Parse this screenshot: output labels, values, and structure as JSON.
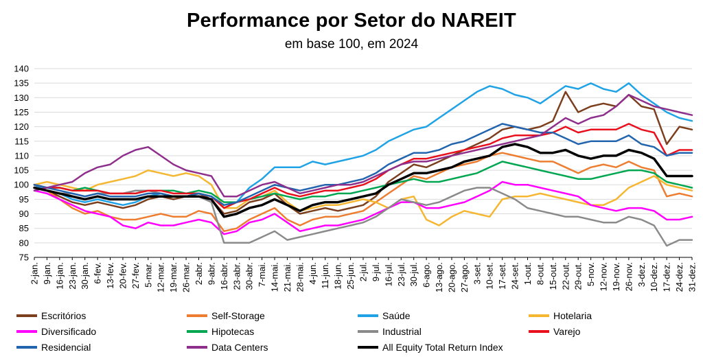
{
  "chart_data": {
    "type": "line",
    "title": "Performance por Setor do NAREIT",
    "subtitle": "em base 100, em 2024",
    "ylim": [
      75,
      140
    ],
    "yticks": [
      75,
      80,
      85,
      90,
      95,
      100,
      105,
      110,
      115,
      120,
      125,
      130,
      135,
      140
    ],
    "grid": "horizontal",
    "legend_position": "bottom",
    "x": [
      "2-jan.",
      "9-jan.",
      "16-jan.",
      "23-jan.",
      "30-jan.",
      "6-fev.",
      "13-fev.",
      "20-fev.",
      "27-fev.",
      "5-mar.",
      "12-mar.",
      "19-mar.",
      "26-mar.",
      "2-abr.",
      "9-abr.",
      "16-abr.",
      "23-abr.",
      "30-abr.",
      "7-mai.",
      "14-mai.",
      "21-mai.",
      "28-mai.",
      "4-jun.",
      "11-jun.",
      "18-jun.",
      "25-jun.",
      "2-jul.",
      "9-jul.",
      "16-jul.",
      "23-jul.",
      "30-jul.",
      "6-ago.",
      "13-ago.",
      "20-ago.",
      "27-ago.",
      "3-set.",
      "10-set.",
      "17-set.",
      "24-set.",
      "1-out.",
      "8-out.",
      "15-out.",
      "22-out.",
      "29-out.",
      "5-nov.",
      "12-nov.",
      "19-nov.",
      "26-nov.",
      "3-dez.",
      "10-dez.",
      "17-dez.",
      "24-dez.",
      "31-dez."
    ],
    "series": [
      {
        "name": "Escritórios",
        "color": "#7B3F1E",
        "width": 2.5,
        "values": [
          100,
          98,
          96,
          94,
          93,
          94,
          93,
          92,
          93,
          95,
          96,
          95,
          96,
          97,
          95,
          90,
          91,
          94,
          95,
          97,
          93,
          90,
          91,
          92,
          91,
          92,
          93,
          96,
          101,
          104,
          107,
          106,
          108,
          110,
          112,
          114,
          116,
          119,
          120,
          119,
          120,
          122,
          132,
          125,
          127,
          128,
          127,
          131,
          127,
          126,
          114,
          120,
          119
        ]
      },
      {
        "name": "Self-Storage",
        "color": "#ED7D31",
        "width": 2.5,
        "values": [
          100,
          98,
          95,
          92,
          90,
          91,
          89,
          88,
          88,
          89,
          90,
          89,
          89,
          91,
          90,
          84,
          85,
          88,
          90,
          92,
          88,
          86,
          88,
          89,
          89,
          90,
          91,
          94,
          97,
          100,
          103,
          102,
          104,
          106,
          107,
          108,
          110,
          111,
          110,
          109,
          108,
          108,
          106,
          104,
          106,
          107,
          106,
          108,
          106,
          105,
          96,
          97,
          96
        ]
      },
      {
        "name": "Saúde",
        "color": "#1FA3E6",
        "width": 2.5,
        "values": [
          100,
          98,
          97,
          95,
          94,
          95,
          94,
          93,
          94,
          96,
          97,
          96,
          96,
          97,
          96,
          92,
          94,
          99,
          102,
          106,
          106,
          106,
          108,
          107,
          108,
          109,
          110,
          112,
          115,
          117,
          119,
          120,
          123,
          126,
          129,
          132,
          134,
          133,
          131,
          130,
          128,
          131,
          134,
          133,
          135,
          133,
          132,
          135,
          131,
          128,
          125,
          123,
          122
        ]
      },
      {
        "name": "Hotelaria",
        "color": "#F5B731",
        "width": 2.5,
        "values": [
          100,
          101,
          100,
          99,
          98,
          100,
          101,
          102,
          103,
          105,
          104,
          103,
          104,
          103,
          100,
          92,
          92,
          95,
          96,
          98,
          94,
          91,
          92,
          93,
          93,
          94,
          95,
          94,
          92,
          95,
          96,
          88,
          86,
          89,
          91,
          90,
          89,
          95,
          96,
          96,
          97,
          96,
          95,
          94,
          93,
          93,
          95,
          99,
          101,
          103,
          100,
          99,
          98
        ]
      },
      {
        "name": "Diversificado",
        "color": "#FF00FF",
        "width": 2.5,
        "values": [
          98,
          97,
          95,
          93,
          91,
          90,
          89,
          86,
          85,
          87,
          86,
          86,
          87,
          88,
          87,
          83,
          84,
          87,
          88,
          90,
          87,
          84,
          85,
          86,
          86,
          87,
          88,
          90,
          92,
          94,
          94,
          92,
          92,
          93,
          94,
          96,
          98,
          101,
          100,
          100,
          99,
          98,
          97,
          96,
          93,
          92,
          91,
          92,
          92,
          91,
          88,
          88,
          89
        ]
      },
      {
        "name": "Hipotecas",
        "color": "#00A650",
        "width": 2.5,
        "values": [
          100,
          99,
          99,
          98,
          99,
          98,
          97,
          97,
          97,
          98,
          98,
          98,
          97,
          98,
          97,
          94,
          94,
          95,
          96,
          97,
          96,
          95,
          96,
          96,
          97,
          97,
          98,
          99,
          100,
          101,
          102,
          101,
          101,
          102,
          103,
          104,
          106,
          108,
          107,
          106,
          105,
          104,
          103,
          102,
          102,
          103,
          104,
          105,
          105,
          104,
          101,
          100,
          99
        ]
      },
      {
        "name": "Industrial",
        "color": "#8A8A8A",
        "width": 2.5,
        "values": [
          99,
          98,
          97,
          97,
          96,
          97,
          97,
          97,
          98,
          98,
          97,
          96,
          96,
          96,
          94,
          80,
          80,
          80,
          82,
          84,
          81,
          82,
          83,
          84,
          85,
          86,
          87,
          89,
          92,
          95,
          94,
          93,
          94,
          96,
          98,
          99,
          99,
          97,
          95,
          92,
          91,
          90,
          89,
          89,
          88,
          87,
          87,
          89,
          88,
          86,
          79,
          81,
          81
        ]
      },
      {
        "name": "Varejo",
        "color": "#E8101C",
        "width": 2.5,
        "values": [
          100,
          99,
          99,
          98,
          98,
          98,
          97,
          97,
          97,
          98,
          98,
          97,
          97,
          97,
          96,
          92,
          94,
          95,
          97,
          99,
          97,
          96,
          97,
          98,
          98,
          99,
          100,
          102,
          105,
          107,
          109,
          109,
          110,
          111,
          112,
          113,
          114,
          116,
          117,
          117,
          117,
          118,
          120,
          118,
          119,
          119,
          119,
          121,
          119,
          118,
          110,
          112,
          112
        ]
      },
      {
        "name": "Residencial",
        "color": "#2264AE",
        "width": 2.5,
        "values": [
          100,
          99,
          98,
          97,
          96,
          97,
          96,
          96,
          96,
          97,
          97,
          96,
          96,
          97,
          96,
          93,
          94,
          96,
          98,
          100,
          99,
          98,
          99,
          100,
          100,
          101,
          102,
          104,
          107,
          109,
          111,
          111,
          112,
          114,
          115,
          117,
          119,
          121,
          120,
          119,
          118,
          118,
          116,
          114,
          115,
          115,
          115,
          117,
          114,
          113,
          110,
          111,
          111
        ]
      },
      {
        "name": "Data Centers",
        "color": "#8E2F8C",
        "width": 2.5,
        "values": [
          98,
          99,
          100,
          101,
          104,
          106,
          107,
          110,
          112,
          113,
          110,
          107,
          105,
          104,
          103,
          96,
          96,
          98,
          100,
          101,
          99,
          97,
          98,
          99,
          100,
          100,
          101,
          103,
          105,
          107,
          108,
          108,
          109,
          110,
          111,
          112,
          113,
          114,
          115,
          116,
          117,
          120,
          123,
          121,
          123,
          124,
          127,
          131,
          129,
          127,
          126,
          125,
          124
        ]
      },
      {
        "name": "All Equity Total Return Index",
        "color": "#000000",
        "width": 3.5,
        "values": [
          99,
          98,
          97,
          96,
          95,
          96,
          95,
          95,
          95,
          96,
          96,
          96,
          96,
          96,
          95,
          89,
          90,
          92,
          93,
          95,
          93,
          91,
          93,
          94,
          94,
          95,
          96,
          97,
          100,
          102,
          104,
          104,
          105,
          106,
          108,
          109,
          110,
          113,
          114,
          113,
          111,
          111,
          112,
          110,
          109,
          110,
          110,
          112,
          111,
          109,
          103,
          103,
          103
        ]
      }
    ]
  }
}
